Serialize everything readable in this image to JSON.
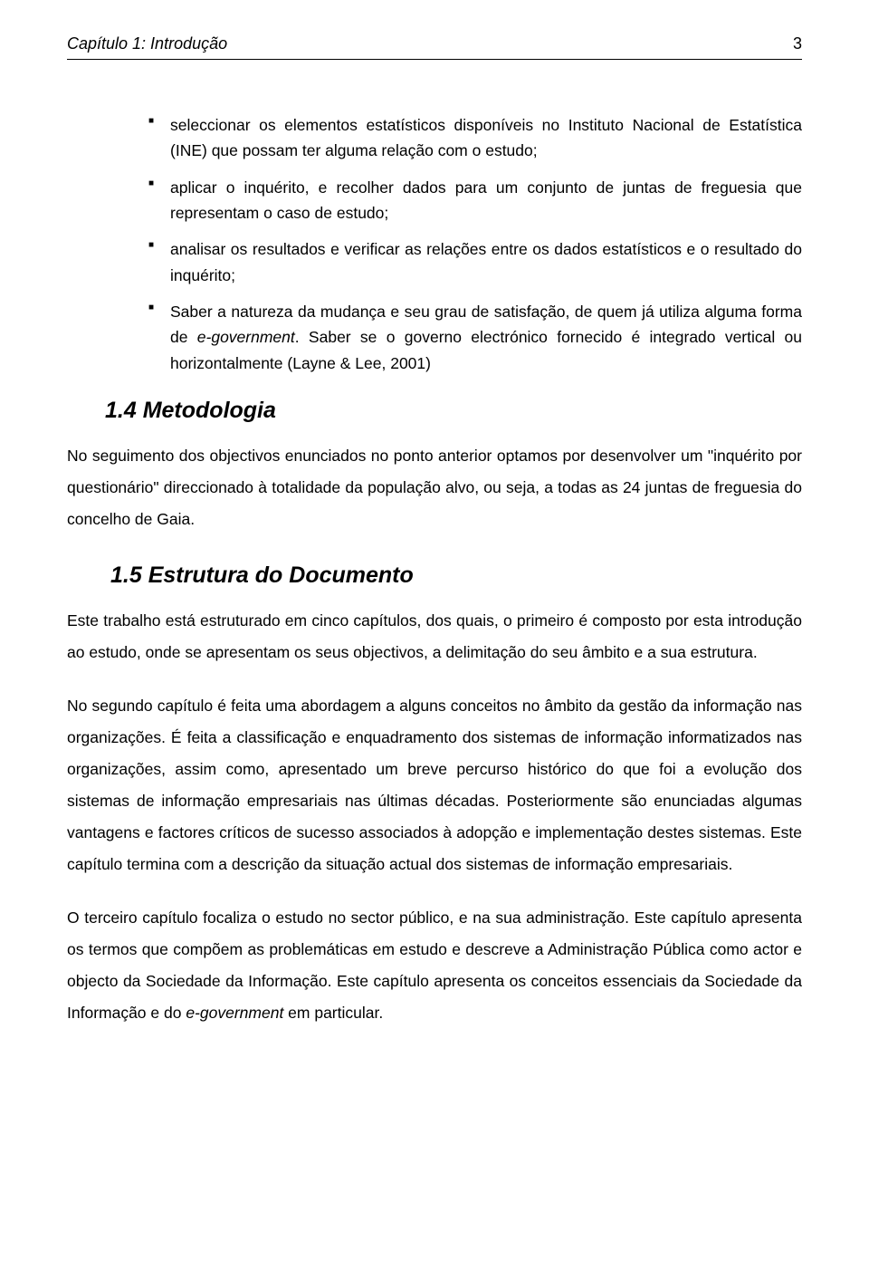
{
  "header": {
    "title": "Capítulo 1: Introdução",
    "page_number": "3"
  },
  "bullets": {
    "b1": "seleccionar os elementos estatísticos disponíveis no Instituto Nacional de Estatística (INE) que possam ter alguma relação com o estudo;",
    "b2": "aplicar o inquérito, e recolher dados para um conjunto de juntas de freguesia que representam o caso de estudo;",
    "b3": "analisar os resultados e verificar as relações entre os dados estatísticos e o resultado do inquérito;",
    "b4_pre": "Saber a natureza da mudança e seu grau de satisfação, de quem já utiliza alguma forma de ",
    "b4_em": "e-government",
    "b4_post": ". Saber se o governo electrónico fornecido é integrado vertical ou horizontalmente (Layne & Lee, 2001)"
  },
  "section14": {
    "heading": "1.4  Metodologia",
    "p1": "No seguimento dos objectivos enunciados no ponto anterior optamos por desenvolver um \"inquérito por questionário\" direccionado à totalidade da população alvo, ou seja, a todas as 24 juntas de freguesia do concelho de Gaia."
  },
  "section15": {
    "heading": "1.5  Estrutura do Documento",
    "p1": "Este trabalho está estruturado em cinco capítulos, dos quais, o primeiro é composto por esta introdução ao estudo, onde se apresentam os seus objectivos, a delimitação do seu âmbito e a sua estrutura.",
    "p2": "No segundo capítulo é feita uma abordagem a alguns conceitos no âmbito da gestão da informação nas organizações. É feita a classificação e enquadramento dos sistemas de informação informatizados nas organizações, assim como, apresentado um breve percurso histórico do que foi a evolução dos sistemas de informação empresariais nas últimas décadas. Posteriormente são enunciadas algumas vantagens e factores críticos de sucesso associados à adopção e implementação destes sistemas. Este capítulo termina com a descrição da situação actual dos sistemas de informação empresariais.",
    "p3_pre": "O terceiro capítulo focaliza o estudo no sector público, e na sua administração. Este capítulo apresenta os termos que compõem as problemáticas em estudo e descreve a Administração Pública como actor e objecto da Sociedade da Informação. Este capítulo apresenta os conceitos essenciais da Sociedade da Informação e do ",
    "p3_em": "e-government",
    "p3_post": " em particular."
  }
}
